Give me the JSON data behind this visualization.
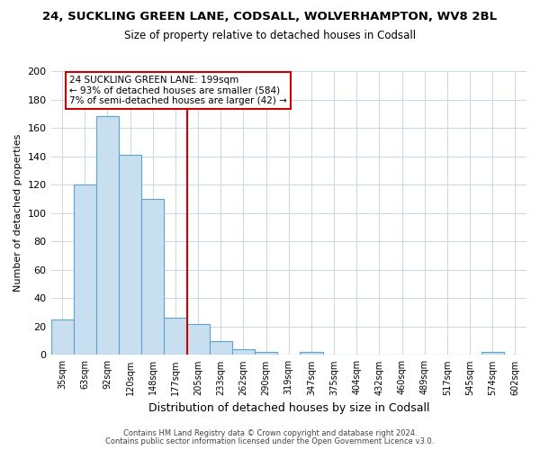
{
  "title": "24, SUCKLING GREEN LANE, CODSALL, WOLVERHAMPTON, WV8 2BL",
  "subtitle": "Size of property relative to detached houses in Codsall",
  "xlabel": "Distribution of detached houses by size in Codsall",
  "ylabel": "Number of detached properties",
  "bar_labels": [
    "35sqm",
    "63sqm",
    "92sqm",
    "120sqm",
    "148sqm",
    "177sqm",
    "205sqm",
    "233sqm",
    "262sqm",
    "290sqm",
    "319sqm",
    "347sqm",
    "375sqm",
    "404sqm",
    "432sqm",
    "460sqm",
    "489sqm",
    "517sqm",
    "545sqm",
    "574sqm",
    "602sqm"
  ],
  "bar_heights": [
    25,
    120,
    168,
    141,
    110,
    26,
    22,
    10,
    4,
    2,
    0,
    2,
    0,
    0,
    0,
    0,
    0,
    0,
    0,
    2,
    0
  ],
  "bar_color": "#c8dff0",
  "bar_edge_color": "#5ba3d0",
  "vline_color": "#cc0000",
  "ylim": [
    0,
    200
  ],
  "yticks": [
    0,
    20,
    40,
    60,
    80,
    100,
    120,
    140,
    160,
    180,
    200
  ],
  "annotation_line1": "24 SUCKLING GREEN LANE: 199sqm",
  "annotation_line2": "← 93% of detached houses are smaller (584)",
  "annotation_line3": "7% of semi-detached houses are larger (42) →",
  "footer_line1": "Contains HM Land Registry data © Crown copyright and database right 2024.",
  "footer_line2": "Contains public sector information licensed under the Open Government Licence v3.0.",
  "bg_color": "#ffffff",
  "plot_bg_color": "#ffffff",
  "grid_color": "#c8d8e8"
}
